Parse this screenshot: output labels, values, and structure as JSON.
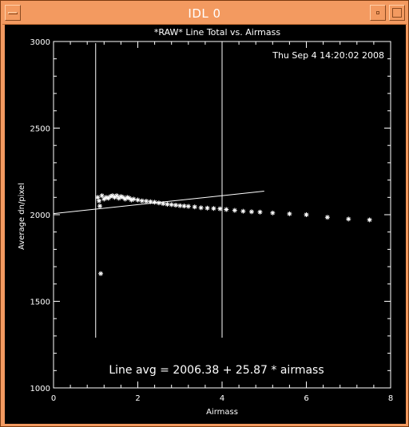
{
  "window": {
    "title": "IDL 0",
    "menu_icon": "window-menu-icon",
    "minimize_icon": "minimize-icon",
    "maximize_icon": "maximize-icon"
  },
  "plot": {
    "timestamp": "Thu Sep  4 14:20:02 2008",
    "fit_label": "Line avg = 2006.38 + 25.87 * airmass"
  },
  "chart_data": {
    "type": "scatter",
    "title": "*RAW* Line Total vs. Airmass",
    "xlabel": "Airmass",
    "ylabel": "Average dn/pixel",
    "xlim": [
      0,
      8
    ],
    "ylim": [
      1000,
      3000
    ],
    "x_ticks": [
      "0",
      "2",
      "4",
      "6",
      "8"
    ],
    "y_ticks": [
      "1000",
      "1500",
      "2000",
      "2500",
      "3000"
    ],
    "colors": {
      "background": "#000000",
      "foreground": "#ffffff"
    },
    "series": [
      {
        "marker": "asterisk",
        "x": [
          1.12,
          1.1,
          1.05,
          1.08,
          1.15,
          1.2,
          1.25,
          1.3,
          1.35,
          1.4,
          1.45,
          1.5,
          1.55,
          1.6,
          1.65,
          1.7,
          1.75,
          1.8,
          1.85,
          1.9,
          2.0,
          2.1,
          2.2,
          2.3,
          2.4,
          2.5,
          2.6,
          2.7,
          2.8,
          2.9,
          3.0,
          3.1,
          3.2,
          3.35,
          3.5,
          3.65,
          3.8,
          3.95,
          4.1,
          4.3,
          4.5,
          4.7,
          4.9,
          5.2,
          5.6,
          6.0,
          6.5,
          7.0,
          7.5
        ],
        "y": [
          1660,
          2050,
          2100,
          2080,
          2110,
          2090,
          2100,
          2095,
          2105,
          2110,
          2100,
          2110,
          2095,
          2105,
          2100,
          2090,
          2100,
          2095,
          2085,
          2090,
          2085,
          2080,
          2078,
          2075,
          2072,
          2068,
          2064,
          2060,
          2058,
          2055,
          2052,
          2050,
          2048,
          2045,
          2040,
          2038,
          2036,
          2034,
          2030,
          2025,
          2020,
          2017,
          2015,
          2010,
          2005,
          2000,
          1985,
          1975,
          1970
        ]
      }
    ],
    "fit_line": {
      "intercept": 2006.38,
      "slope": 25.87,
      "x_range": [
        0,
        5
      ]
    },
    "vertical_lines_x": [
      1.0,
      4.0
    ],
    "vertical_lines_y_range": [
      1290,
      2990
    ]
  }
}
